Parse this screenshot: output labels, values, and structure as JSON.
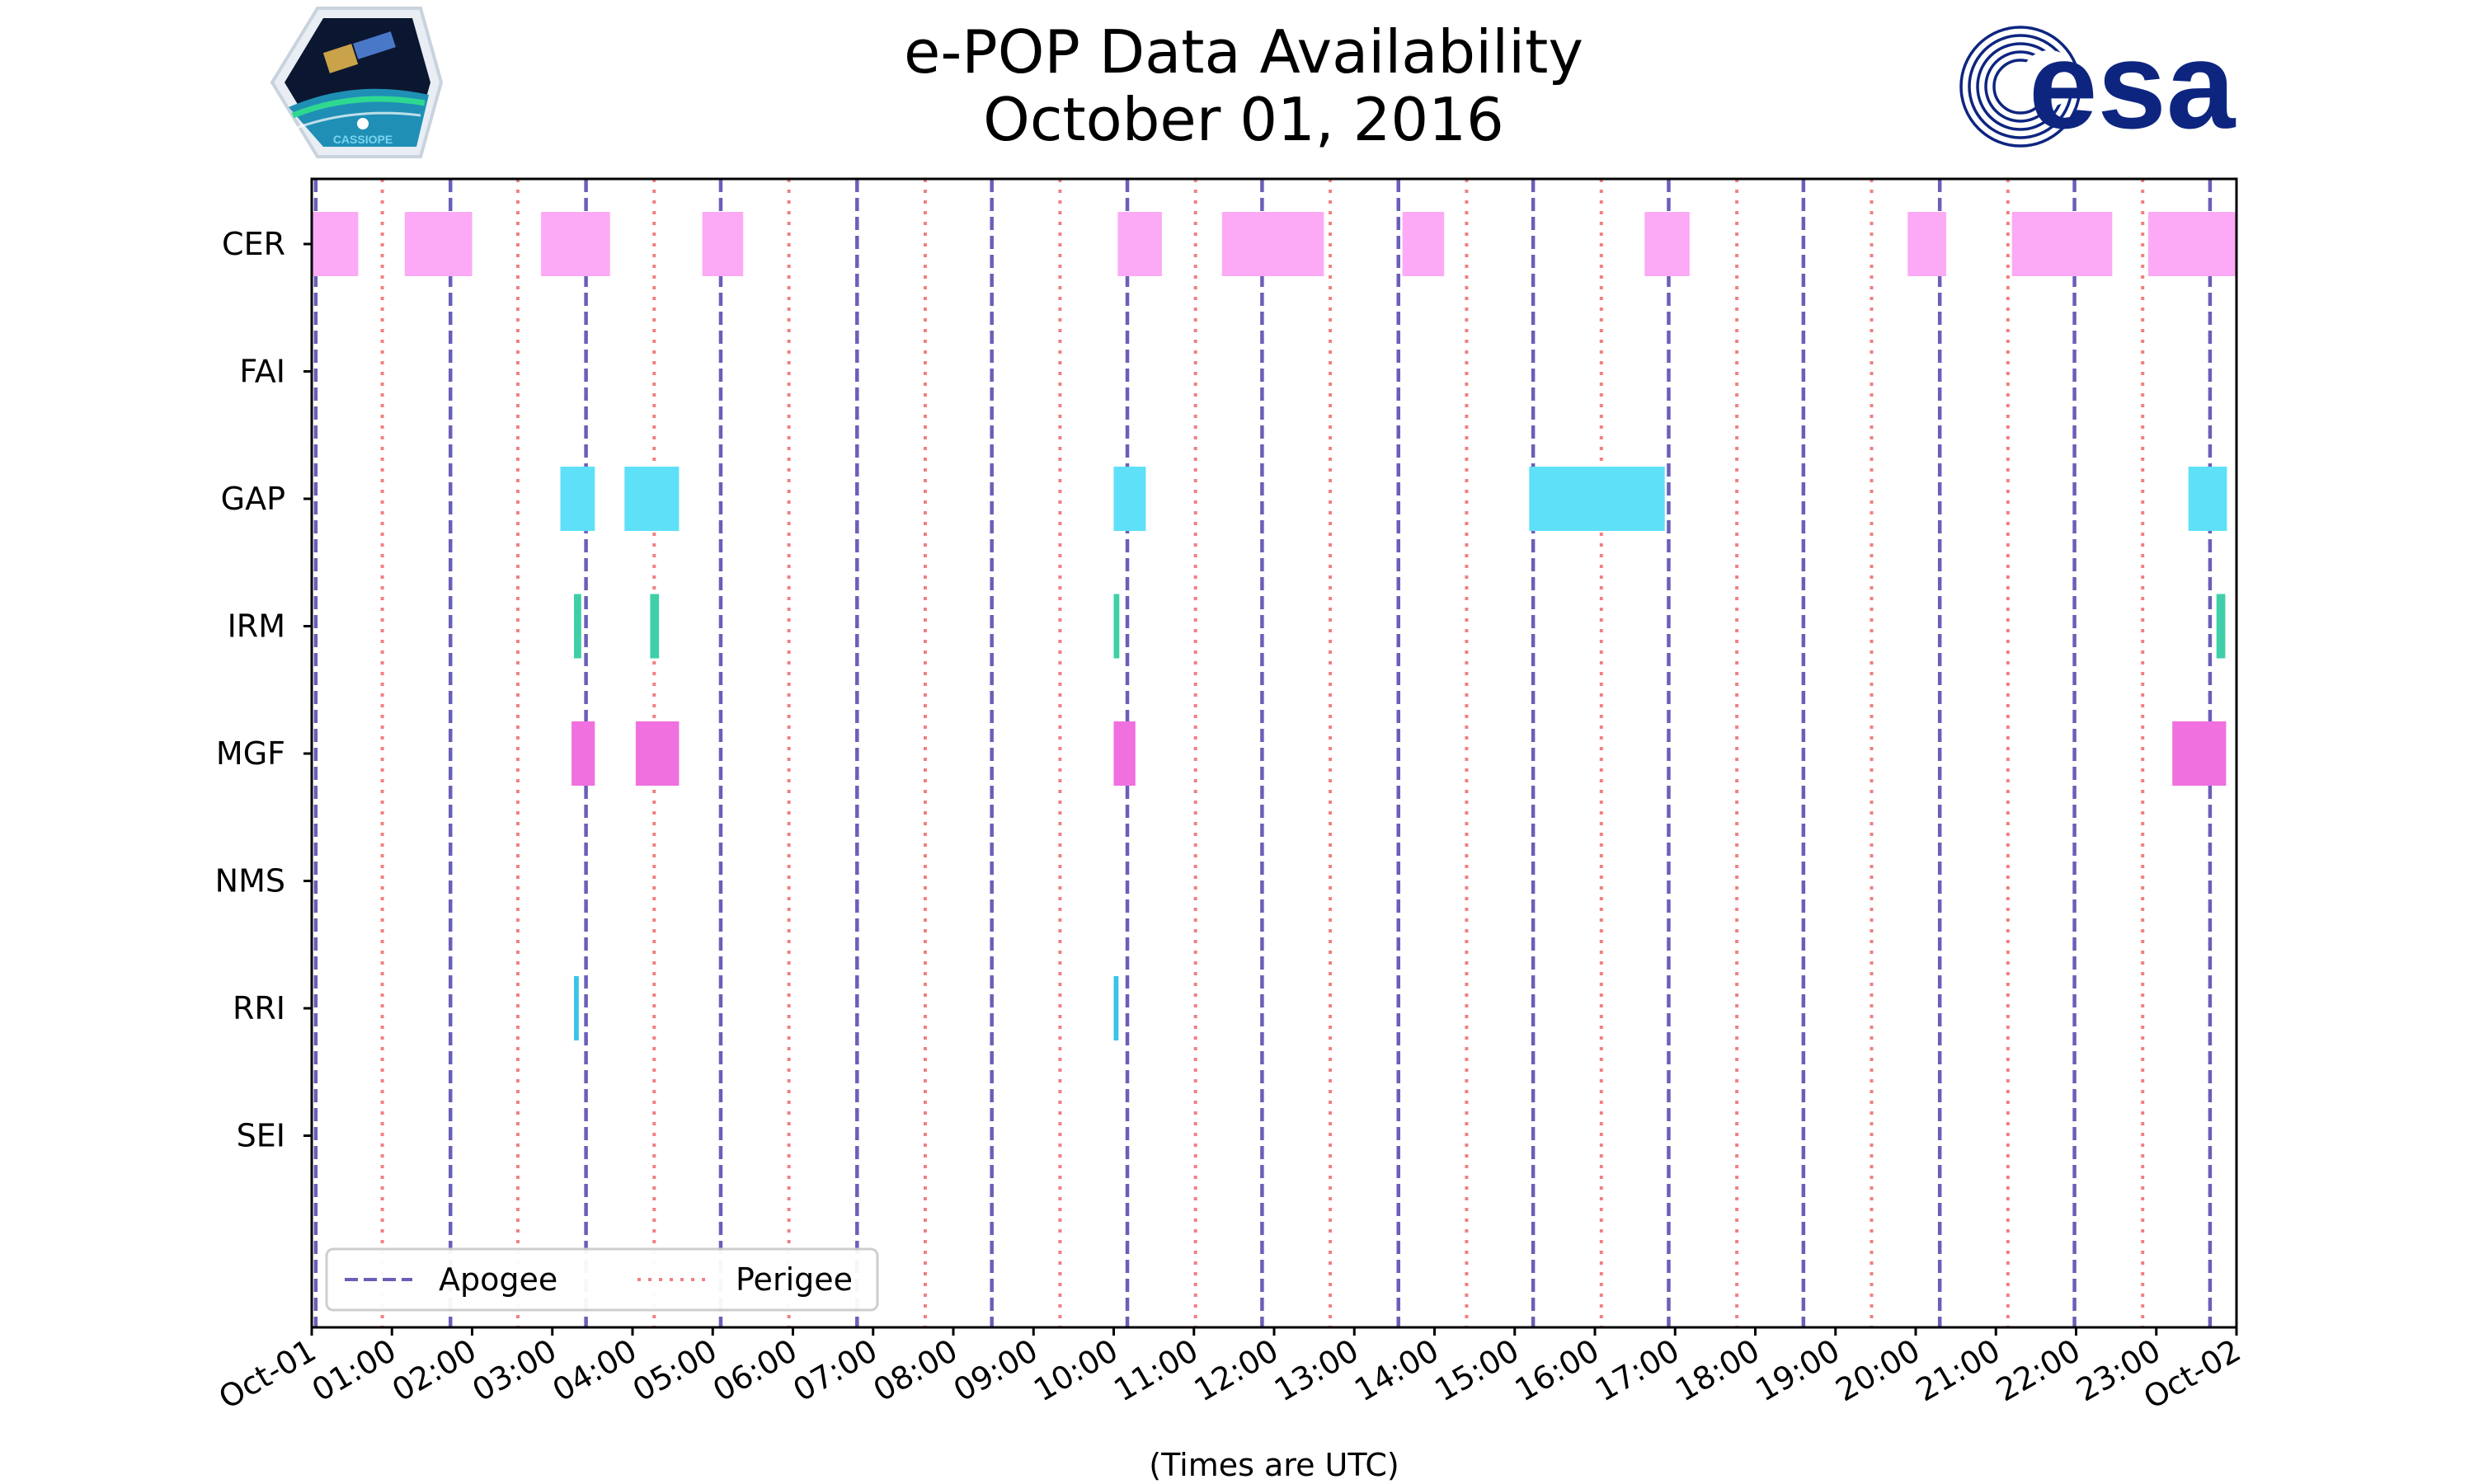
{
  "chart_data": {
    "type": "timeline",
    "title": "e-POP Data Availability",
    "subtitle": "October 01, 2016",
    "xlabel": "(Times are UTC)",
    "x_unit": "hours",
    "xlim": [
      0,
      24
    ],
    "x_tick_labels": [
      "Oct-01",
      "01:00",
      "02:00",
      "03:00",
      "04:00",
      "05:00",
      "06:00",
      "07:00",
      "08:00",
      "09:00",
      "10:00",
      "11:00",
      "12:00",
      "13:00",
      "14:00",
      "15:00",
      "16:00",
      "17:00",
      "18:00",
      "19:00",
      "20:00",
      "21:00",
      "22:00",
      "23:00",
      "Oct-02"
    ],
    "instruments": [
      "CER",
      "FAI",
      "GAP",
      "IRM",
      "MGF",
      "NMS",
      "RRI",
      "SEI"
    ],
    "series": [
      {
        "name": "CER",
        "color": "#fcaaf5",
        "intervals": [
          [
            0.0,
            0.58
          ],
          [
            1.16,
            2.0
          ],
          [
            2.86,
            3.72
          ],
          [
            4.87,
            5.38
          ],
          [
            10.05,
            10.6
          ],
          [
            11.35,
            12.62
          ],
          [
            13.6,
            14.12
          ],
          [
            16.62,
            17.18
          ],
          [
            19.9,
            20.38
          ],
          [
            21.2,
            22.45
          ],
          [
            22.9,
            24.0
          ]
        ]
      },
      {
        "name": "FAI",
        "color": "#5ee0f8",
        "intervals": []
      },
      {
        "name": "GAP",
        "color": "#5ee0f8",
        "intervals": [
          [
            3.1,
            3.53
          ],
          [
            3.9,
            4.58
          ],
          [
            10.0,
            10.4
          ],
          [
            15.18,
            16.87
          ],
          [
            23.4,
            23.88
          ]
        ]
      },
      {
        "name": "IRM",
        "color": "#3ecfa8",
        "intervals": [
          [
            3.27,
            3.36
          ],
          [
            4.22,
            4.33
          ],
          [
            10.0,
            10.07
          ],
          [
            23.75,
            23.86
          ]
        ]
      },
      {
        "name": "MGF",
        "color": "#f070e0",
        "intervals": [
          [
            3.24,
            3.53
          ],
          [
            4.04,
            4.58
          ],
          [
            10.0,
            10.27
          ],
          [
            23.2,
            23.87
          ]
        ]
      },
      {
        "name": "NMS",
        "color": "#5ee0f8",
        "intervals": []
      },
      {
        "name": "RRI",
        "color": "#39c4e8",
        "intervals": [
          [
            3.27,
            3.33
          ],
          [
            10.0,
            10.06
          ]
        ]
      },
      {
        "name": "SEI",
        "color": "#5ee0f8",
        "intervals": []
      }
    ],
    "apogee": [
      0.05,
      1.73,
      3.42,
      5.1,
      6.8,
      8.48,
      10.17,
      11.85,
      13.55,
      15.23,
      16.92,
      18.6,
      20.3,
      21.98,
      23.67
    ],
    "perigee": [
      0.88,
      2.57,
      4.27,
      5.95,
      7.65,
      9.33,
      11.02,
      12.7,
      14.4,
      16.08,
      17.77,
      19.45,
      21.15,
      22.83
    ],
    "apogee_color": "#6a5fb8",
    "perigee_color": "#f08080",
    "legend": {
      "position": "lower-left",
      "entries": [
        "Apogee",
        "Perigee"
      ]
    }
  },
  "logos": {
    "left_badge_text": "CASSIOPE",
    "right_text": "esa",
    "right_color": "#0e2580"
  }
}
